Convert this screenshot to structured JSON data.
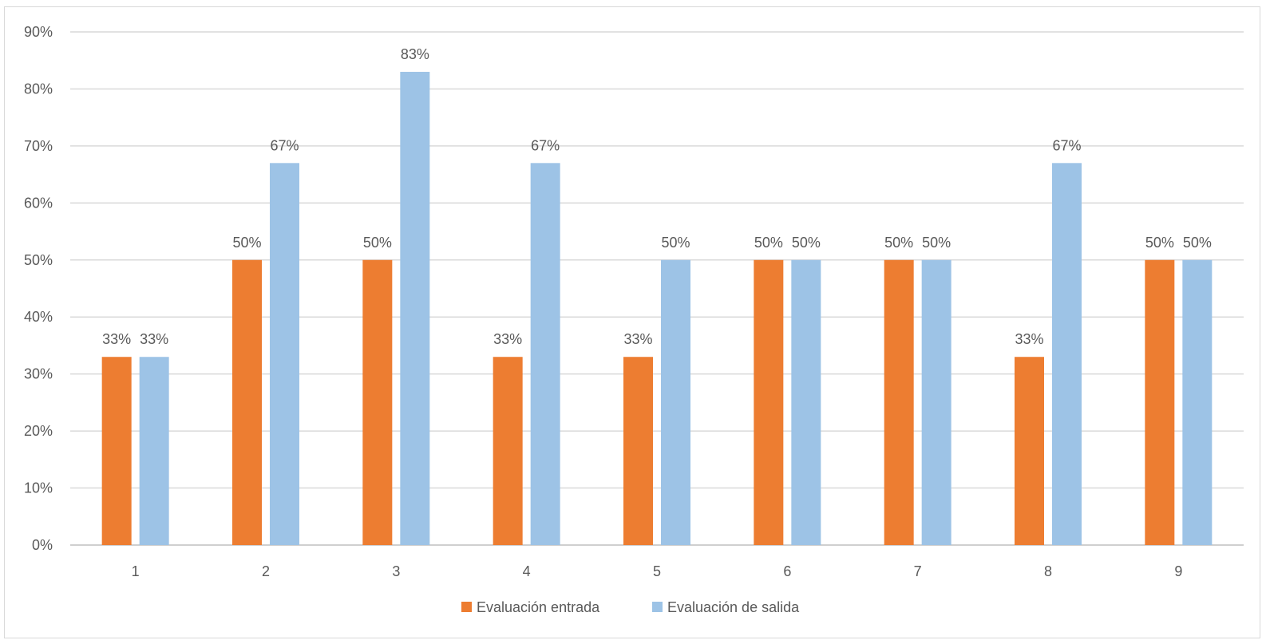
{
  "chart_data": {
    "type": "bar",
    "title": "",
    "xlabel": "",
    "ylabel": "",
    "categories": [
      "1",
      "2",
      "3",
      "4",
      "5",
      "6",
      "7",
      "8",
      "9"
    ],
    "ylim": [
      0,
      0.9
    ],
    "yticks": [
      0,
      0.1,
      0.2,
      0.3,
      0.4,
      0.5,
      0.6,
      0.7,
      0.8,
      0.9
    ],
    "ytick_labels": [
      "0%",
      "10%",
      "20%",
      "30%",
      "40%",
      "50%",
      "60%",
      "70%",
      "80%",
      "90%"
    ],
    "grid": true,
    "legend_position": "bottom",
    "series": [
      {
        "name": "Evaluación entrada",
        "color": "#ED7D31",
        "values": [
          0.33,
          0.5,
          0.5,
          0.33,
          0.33,
          0.5,
          0.5,
          0.33,
          0.5
        ],
        "labels": [
          "33%",
          "50%",
          "50%",
          "33%",
          "33%",
          "50%",
          "50%",
          "33%",
          "50%"
        ]
      },
      {
        "name": "Evaluación de salida",
        "color": "#9DC3E6",
        "values": [
          0.33,
          0.67,
          0.83,
          0.67,
          0.5,
          0.5,
          0.5,
          0.67,
          0.5
        ],
        "labels": [
          "33%",
          "67%",
          "83%",
          "67%",
          "50%",
          "50%",
          "50%",
          "67%",
          "50%"
        ]
      }
    ]
  }
}
